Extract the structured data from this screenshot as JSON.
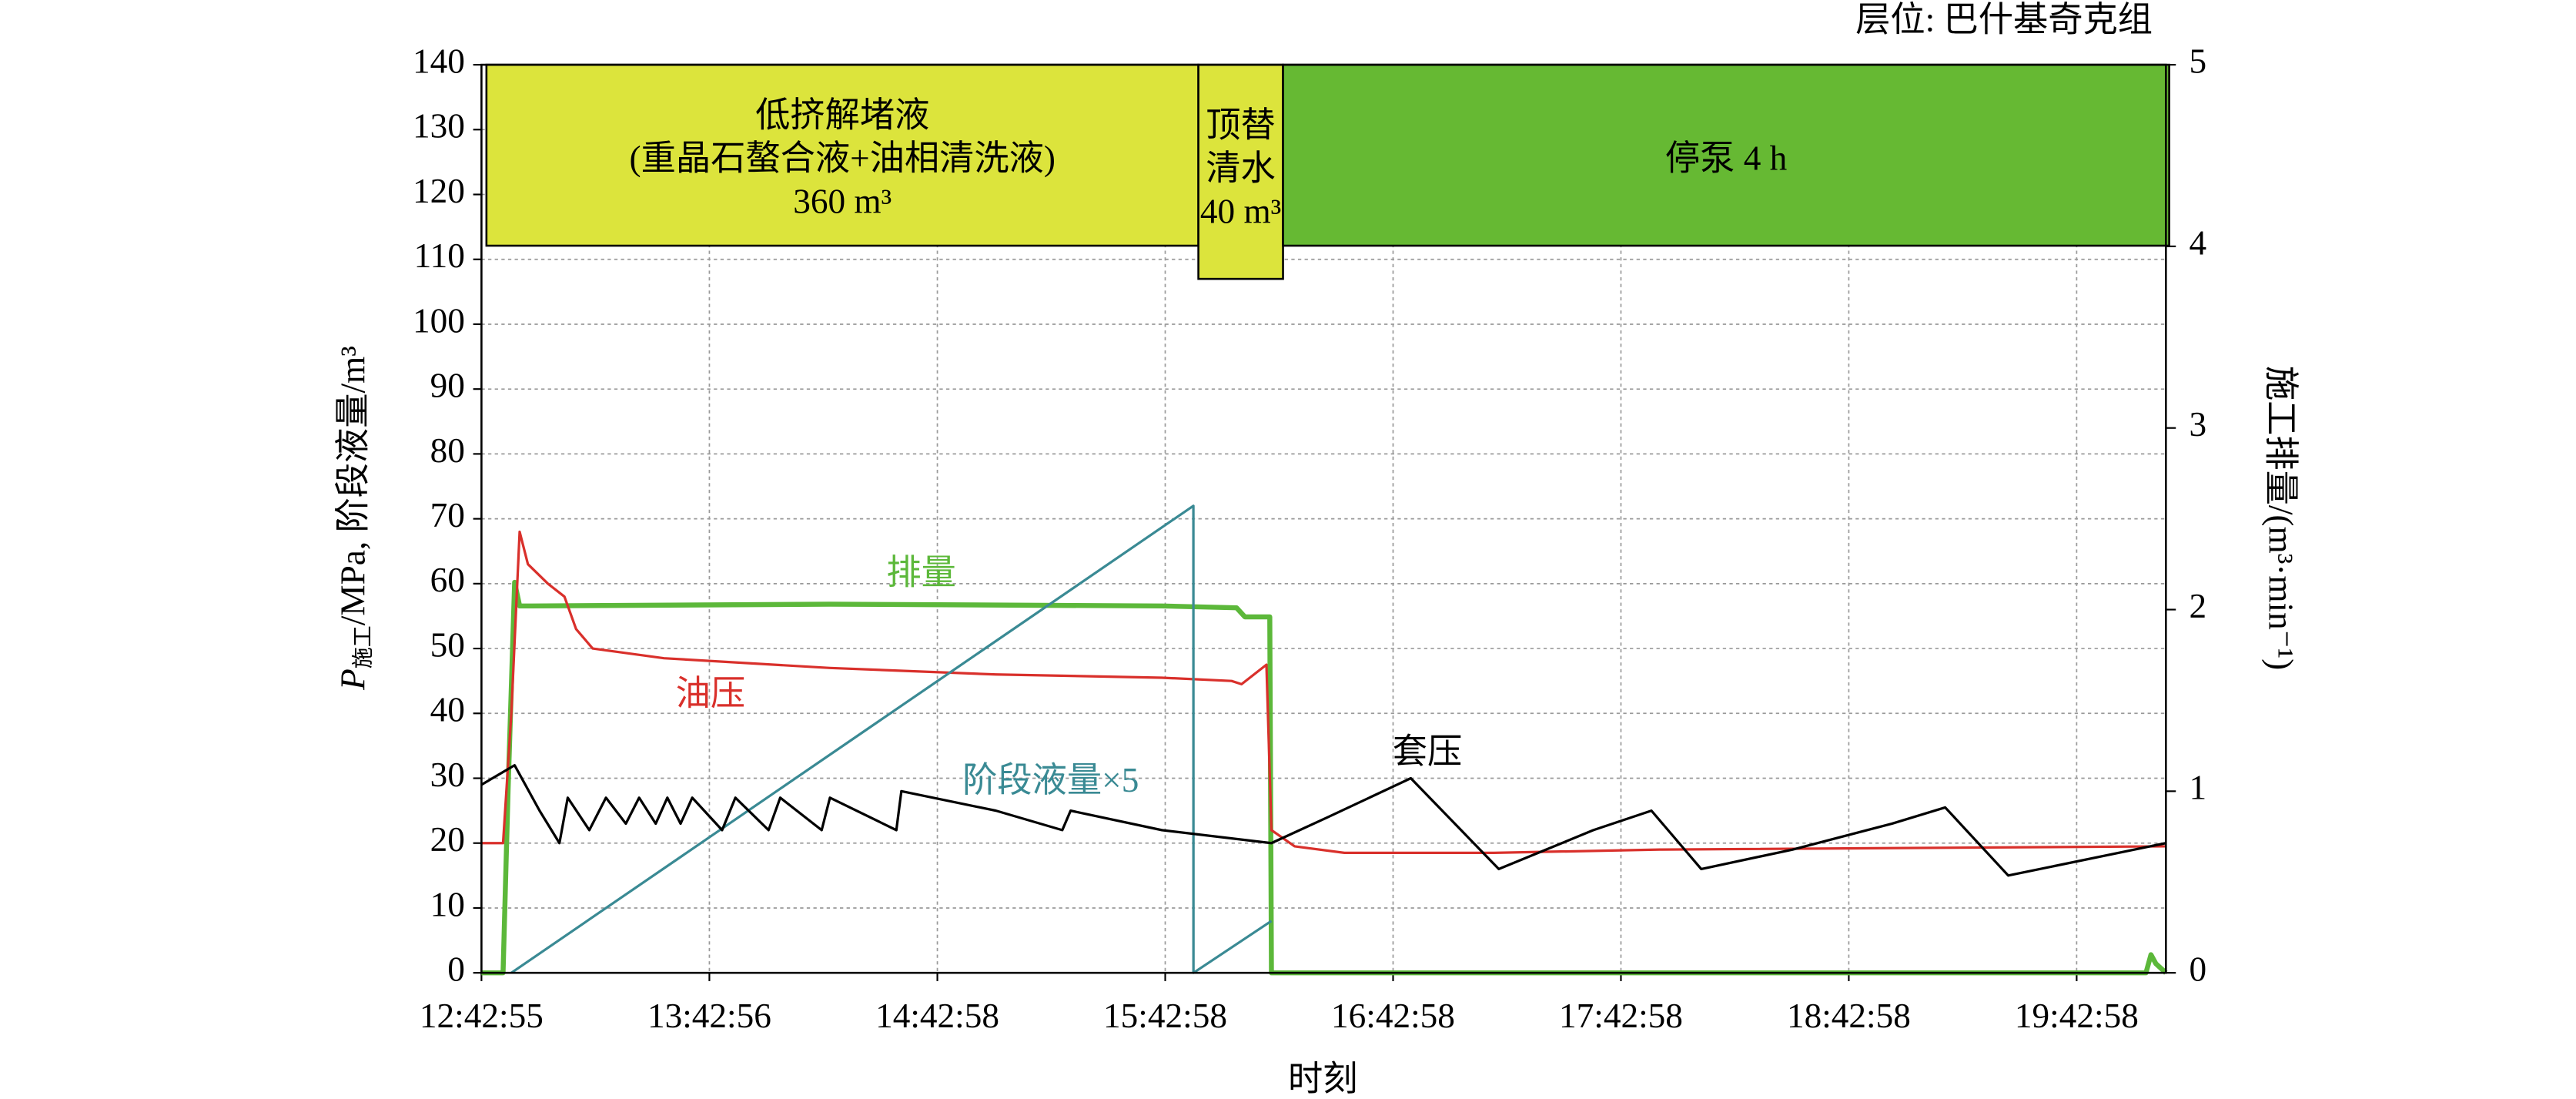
{
  "chart_data": {
    "type": "line",
    "annotation": "层位: 巴什基奇克组",
    "x_label": "时刻",
    "y_label": {
      "symbol": "P",
      "subscript": "施工",
      "rest": "/MPa, 阶段液量/m³"
    },
    "y2_label": "施工排量/(m³·min⁻¹)",
    "xlim": [
      "12:42:55",
      "20:06:28"
    ],
    "xticks": [
      "12:42:55",
      "13:42:56",
      "14:42:58",
      "15:42:58",
      "16:42:58",
      "17:42:58",
      "18:42:58",
      "19:42:58"
    ],
    "ylim": [
      0,
      140
    ],
    "yticks": [
      0,
      10,
      20,
      30,
      40,
      50,
      60,
      70,
      80,
      90,
      100,
      110,
      120,
      130,
      140
    ],
    "y2lim": [
      0,
      5
    ],
    "y2ticks": [
      0,
      1,
      2,
      3,
      4,
      5
    ],
    "grid": true,
    "stages": [
      {
        "lines": [
          "低挤解堵液",
          "(重晶石螯合液+油相清洗液)",
          "360 m³"
        ],
        "color": "#dce43c"
      },
      {
        "lines": [
          "顶替",
          "清水",
          "40 m³"
        ],
        "color": "#dce43c"
      },
      {
        "lines": [
          "停泵 4 h"
        ],
        "color": "#66b933"
      }
    ],
    "series": [
      {
        "name": "排量",
        "color": "#5cb83a",
        "axis": "y2",
        "x": [
          "12:42:55",
          "12:48:36",
          "12:49:55",
          "12:51:39",
          "12:52:58",
          "12:56:02",
          "14:14:41",
          "15:42:05",
          "16:01:45",
          "16:03:56",
          "16:10:30",
          "16:10:56",
          "20:01:13",
          "20:02:32",
          "20:03:51",
          "20:06:28"
        ],
        "values": [
          0,
          0,
          1.0,
          2.15,
          2.02,
          2.02,
          2.03,
          2.02,
          2.01,
          1.96,
          1.96,
          0,
          0,
          0.1,
          0.05,
          0
        ]
      },
      {
        "name": "油压",
        "color": "#d9302b",
        "axis": "y",
        "x": [
          "12:42:55",
          "12:48:36",
          "12:50:47",
          "12:52:58",
          "12:55:09",
          "13:00:24",
          "13:04:46",
          "13:07:50",
          "13:12:12",
          "13:30:59",
          "14:14:41",
          "14:58:23",
          "15:42:05",
          "16:00:26",
          "16:03:04",
          "16:09:37",
          "16:10:56",
          "16:17:03",
          "16:30:09",
          "17:09:29",
          "17:53:11",
          "20:06:28"
        ],
        "values": [
          20,
          20,
          40,
          68,
          63,
          60,
          58,
          53,
          50,
          48.5,
          47,
          46,
          45.5,
          45,
          44.5,
          47.5,
          22,
          19.5,
          18.5,
          18.5,
          19,
          19.5
        ]
      },
      {
        "name": "阶段液量×5",
        "color": "#3a8a94",
        "axis": "y",
        "x": [
          "12:50:47",
          "15:50:23",
          "15:50:24",
          "16:10:56"
        ],
        "values": [
          0,
          72,
          0,
          8
        ]
      },
      {
        "name": "套压",
        "color": "#000000",
        "axis": "y",
        "x": [
          "12:42:55",
          "12:51:39",
          "12:58:13",
          "13:03:27",
          "13:05:38",
          "13:11:19",
          "13:15:42",
          "13:20:56",
          "13:24:26",
          "13:28:48",
          "13:31:52",
          "13:35:21",
          "13:38:25",
          "13:46:17",
          "13:49:47",
          "13:58:31",
          "14:01:35",
          "14:12:30",
          "14:14:41",
          "14:32:10",
          "14:33:29",
          "14:58:23",
          "15:15:52",
          "15:18:03",
          "15:42:05",
          "16:10:56",
          "16:25:47",
          "16:47:38",
          "17:10:48",
          "17:35:42",
          "17:51:00",
          "18:04:07",
          "18:28:09",
          "18:54:22",
          "19:08:21",
          "19:24:57",
          "20:06:28"
        ],
        "values": [
          29,
          32,
          25,
          20,
          27,
          22,
          27,
          23,
          27,
          23,
          27,
          23,
          27,
          22,
          27,
          22,
          27,
          22,
          27,
          22,
          28,
          25,
          22,
          25,
          22,
          20,
          24,
          30,
          16,
          22,
          25,
          16,
          19,
          23,
          25.5,
          15,
          20
        ]
      }
    ]
  }
}
